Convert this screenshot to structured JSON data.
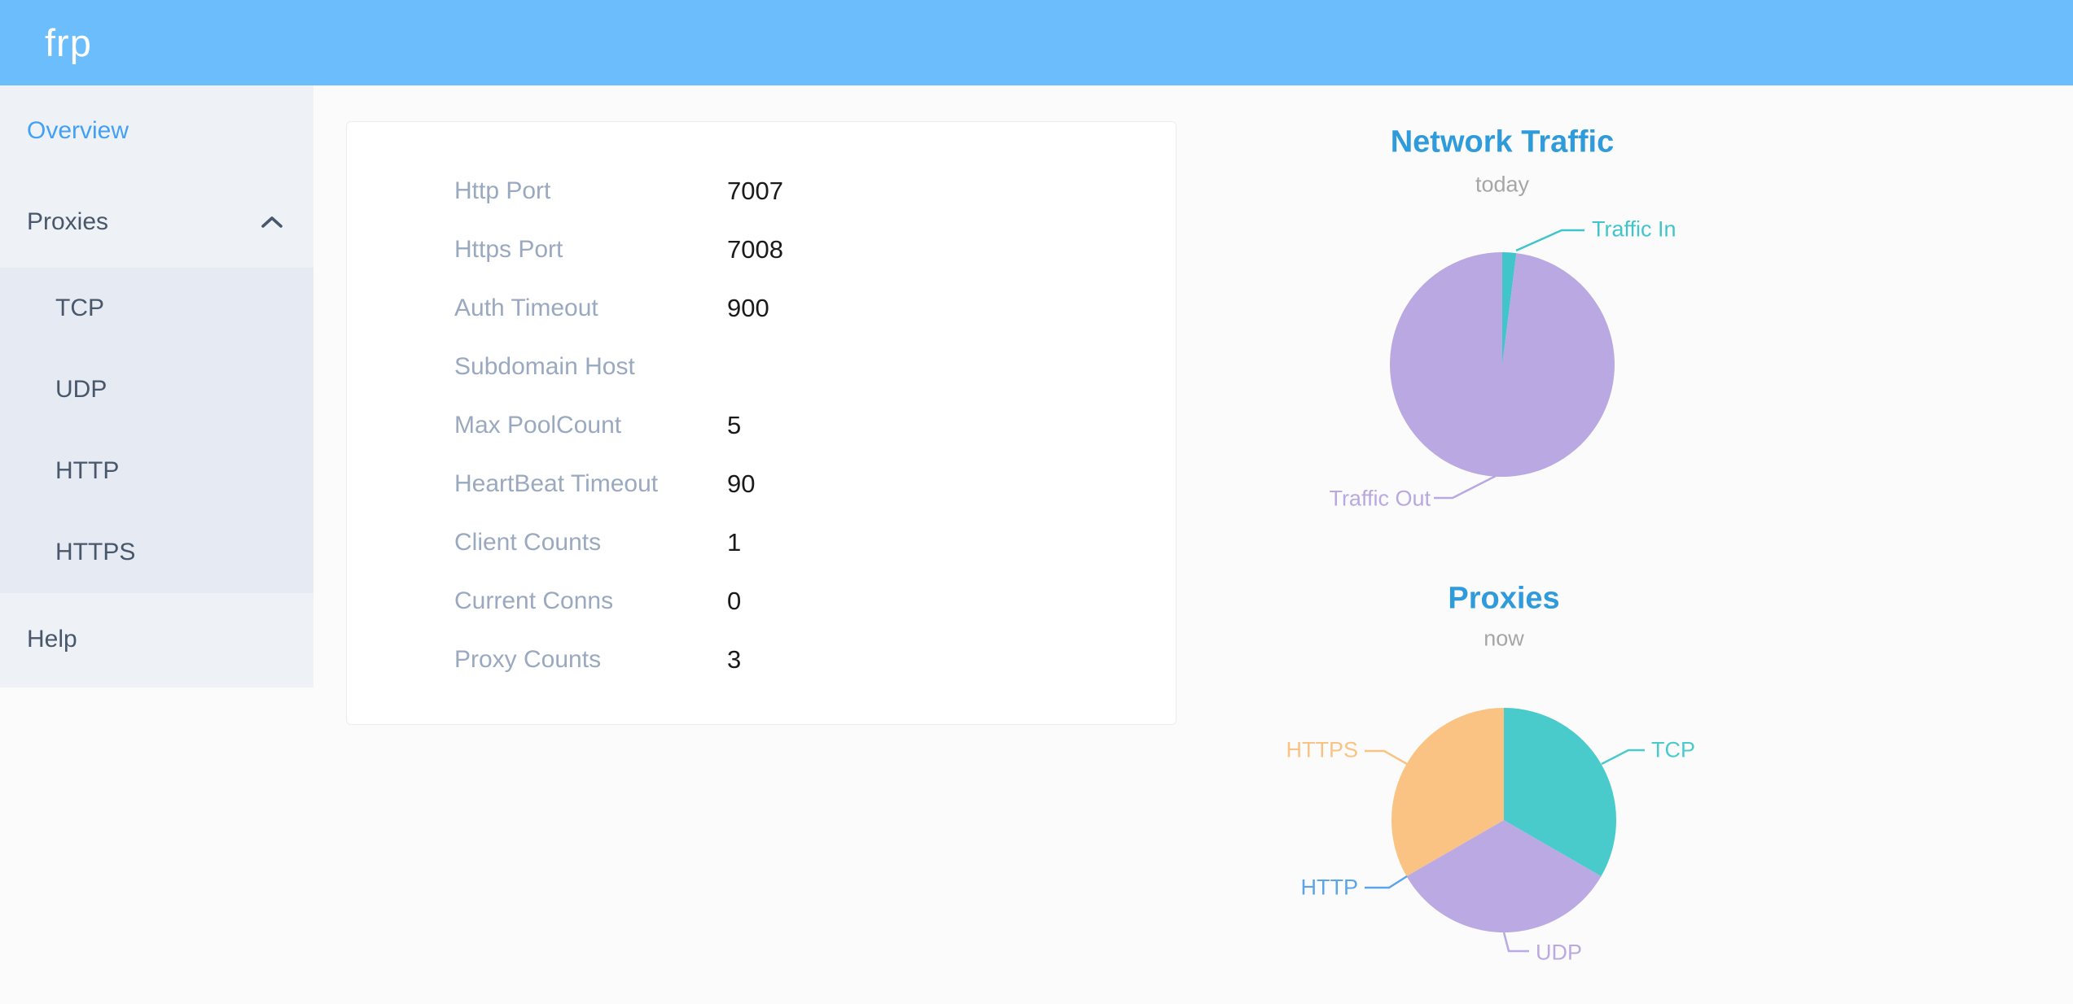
{
  "header": {
    "logo": "frp"
  },
  "sidebar": {
    "items": [
      {
        "label": "Overview",
        "active": true
      },
      {
        "label": "Proxies",
        "expanded": true,
        "children": [
          "TCP",
          "UDP",
          "HTTP",
          "HTTPS"
        ]
      },
      {
        "label": "Help"
      }
    ]
  },
  "overview_card": {
    "rows": [
      {
        "label": "Http Port",
        "value": "7007"
      },
      {
        "label": "Https Port",
        "value": "7008"
      },
      {
        "label": "Auth Timeout",
        "value": "900"
      },
      {
        "label": "Subdomain Host",
        "value": ""
      },
      {
        "label": "Max PoolCount",
        "value": "5"
      },
      {
        "label": "HeartBeat Timeout",
        "value": "90"
      },
      {
        "label": "Client Counts",
        "value": "1"
      },
      {
        "label": "Current Conns",
        "value": "0"
      },
      {
        "label": "Proxy Counts",
        "value": "3"
      }
    ]
  },
  "chart_data": [
    {
      "type": "pie",
      "title": "Network Traffic",
      "subtitle": "today",
      "legend_position": "none",
      "labels_shown": true,
      "series": [
        {
          "name": "Traffic In",
          "value": 2,
          "color": "#41c5cb"
        },
        {
          "name": "Traffic Out",
          "value": 98,
          "color": "#b9a8e1"
        }
      ]
    },
    {
      "type": "pie",
      "title": "Proxies",
      "subtitle": "now",
      "legend_position": "none",
      "labels_shown": true,
      "series": [
        {
          "name": "TCP",
          "value": 1,
          "color": "#4acbcb"
        },
        {
          "name": "UDP",
          "value": 1,
          "color": "#bba9e3"
        },
        {
          "name": "HTTP",
          "value": 0,
          "color": "#5ba5e7"
        },
        {
          "name": "HTTPS",
          "value": 1,
          "color": "#fac383"
        }
      ]
    }
  ],
  "colors": {
    "header_bg": "#6cbdfc",
    "logo_text": "#ffffff",
    "page_bg": "#fbfbfb",
    "sidebar_bg": "#eef2f7",
    "submenu_bg": "#e6eaf2",
    "menu_text": "#48576a",
    "menu_active": "#42a0f7",
    "card_bg": "#ffffff",
    "card_border": "#e9edf3",
    "label_gray": "#9aa9bf",
    "value_black": "#1a1a1a",
    "title_blue": "#2f9bdb",
    "subtitle_gray": "#a6a6a6"
  }
}
